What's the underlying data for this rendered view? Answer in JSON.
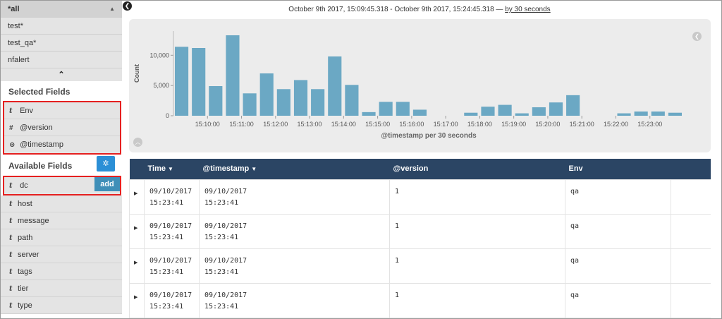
{
  "sidebar": {
    "indices": [
      "*all",
      "test*",
      "test_qa*",
      "nfalert"
    ],
    "selected_title": "Selected Fields",
    "selected_fields": [
      {
        "type": "t",
        "name": "Env"
      },
      {
        "type": "#",
        "name": "@version"
      },
      {
        "type": "⊙",
        "name": "@timestamp"
      }
    ],
    "available_title": "Available Fields",
    "add_label": "add",
    "available_fields": [
      {
        "type": "t",
        "name": "dc"
      },
      {
        "type": "t",
        "name": "host"
      },
      {
        "type": "t",
        "name": "message"
      },
      {
        "type": "t",
        "name": "path"
      },
      {
        "type": "t",
        "name": "server"
      },
      {
        "type": "t",
        "name": "tags"
      },
      {
        "type": "t",
        "name": "tier"
      },
      {
        "type": "t",
        "name": "type"
      }
    ]
  },
  "header": {
    "time_range": "October 9th 2017, 15:09:45.318 - October 9th 2017, 15:24:45.318 — ",
    "interval": "by 30 seconds"
  },
  "chart_data": {
    "type": "bar",
    "xlabel": "@timestamp per 30 seconds",
    "ylabel": "Count",
    "ylim": [
      0,
      14000
    ],
    "yticks": [
      0,
      5000,
      10000
    ],
    "ytick_labels": [
      "0",
      "5,000",
      "10,000"
    ],
    "xticks": [
      "15:10:00",
      "15:11:00",
      "15:12:00",
      "15:13:00",
      "15:14:00",
      "15:15:00",
      "15:16:00",
      "15:17:00",
      "15:18:00",
      "15:19:00",
      "15:20:00",
      "15:21:00",
      "15:22:00",
      "15:23:00"
    ],
    "values": [
      11400,
      11200,
      4900,
      13300,
      3700,
      7000,
      4400,
      5900,
      4400,
      9800,
      5100,
      600,
      2300,
      2300,
      1000,
      0,
      0,
      500,
      1500,
      1800,
      400,
      1400,
      2200,
      3400,
      0,
      0,
      400,
      700,
      700,
      500
    ],
    "bar_color": "#6ba8c4"
  },
  "table": {
    "columns": [
      "Time",
      "@timestamp",
      "@version",
      "Env"
    ],
    "rows": [
      {
        "time": [
          "09/10/2017",
          "15:23:41"
        ],
        "timestamp": [
          "09/10/2017",
          "15:23:41"
        ],
        "version": "1",
        "env": "qa"
      },
      {
        "time": [
          "09/10/2017",
          "15:23:41"
        ],
        "timestamp": [
          "09/10/2017",
          "15:23:41"
        ],
        "version": "1",
        "env": "qa"
      },
      {
        "time": [
          "09/10/2017",
          "15:23:41"
        ],
        "timestamp": [
          "09/10/2017",
          "15:23:41"
        ],
        "version": "1",
        "env": "qa"
      },
      {
        "time": [
          "09/10/2017",
          "15:23:41"
        ],
        "timestamp": [
          "09/10/2017",
          "15:23:41"
        ],
        "version": "1",
        "env": "qa"
      }
    ]
  }
}
